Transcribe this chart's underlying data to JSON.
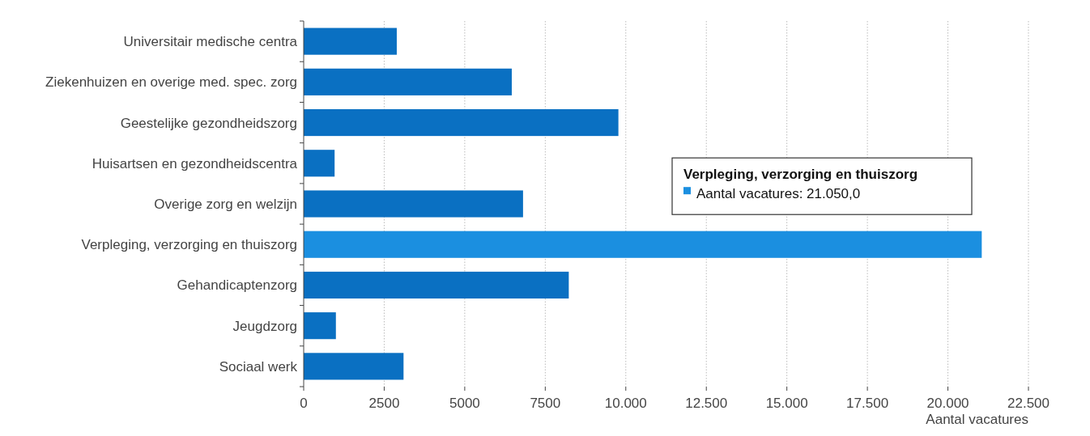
{
  "chart_data": {
    "type": "bar",
    "orientation": "horizontal",
    "categories": [
      "Universitair medische centra",
      "Ziekenhuizen en overige med. spec. zorg",
      "Geestelijke gezondheidszorg",
      "Huisartsen en gezondheidscentra",
      "Overige zorg en welzijn",
      "Verpleging, verzorging en thuiszorg",
      "Gehandicaptenzorg",
      "Jeugdzorg",
      "Sociaal werk"
    ],
    "values": [
      2890,
      6460,
      9770,
      960,
      6810,
      21050,
      8230,
      1000,
      3100
    ],
    "colors": [
      "#0a70c2",
      "#0a70c2",
      "#0a70c2",
      "#0a70c2",
      "#0a70c2",
      "#1b8fe0",
      "#0a70c2",
      "#0a70c2",
      "#0a70c2"
    ],
    "xlim": [
      0,
      22500
    ],
    "xticks": [
      0,
      2500,
      5000,
      7500,
      {
        "value": 10000,
        "label": "10.000"
      },
      {
        "value": 12500,
        "label": "12.500"
      },
      {
        "value": 15000,
        "label": "15.000"
      },
      {
        "value": 17500,
        "label": "17.500"
      },
      {
        "value": 20000,
        "label": "20.000"
      },
      {
        "value": 22500,
        "label": "22.500"
      }
    ],
    "xlabel": "Aantal vacatures",
    "grid": "x",
    "annotations": [
      "Verpleging, verzorging en thuiszorg",
      "Aantal vacatures: 21.050,0"
    ]
  }
}
